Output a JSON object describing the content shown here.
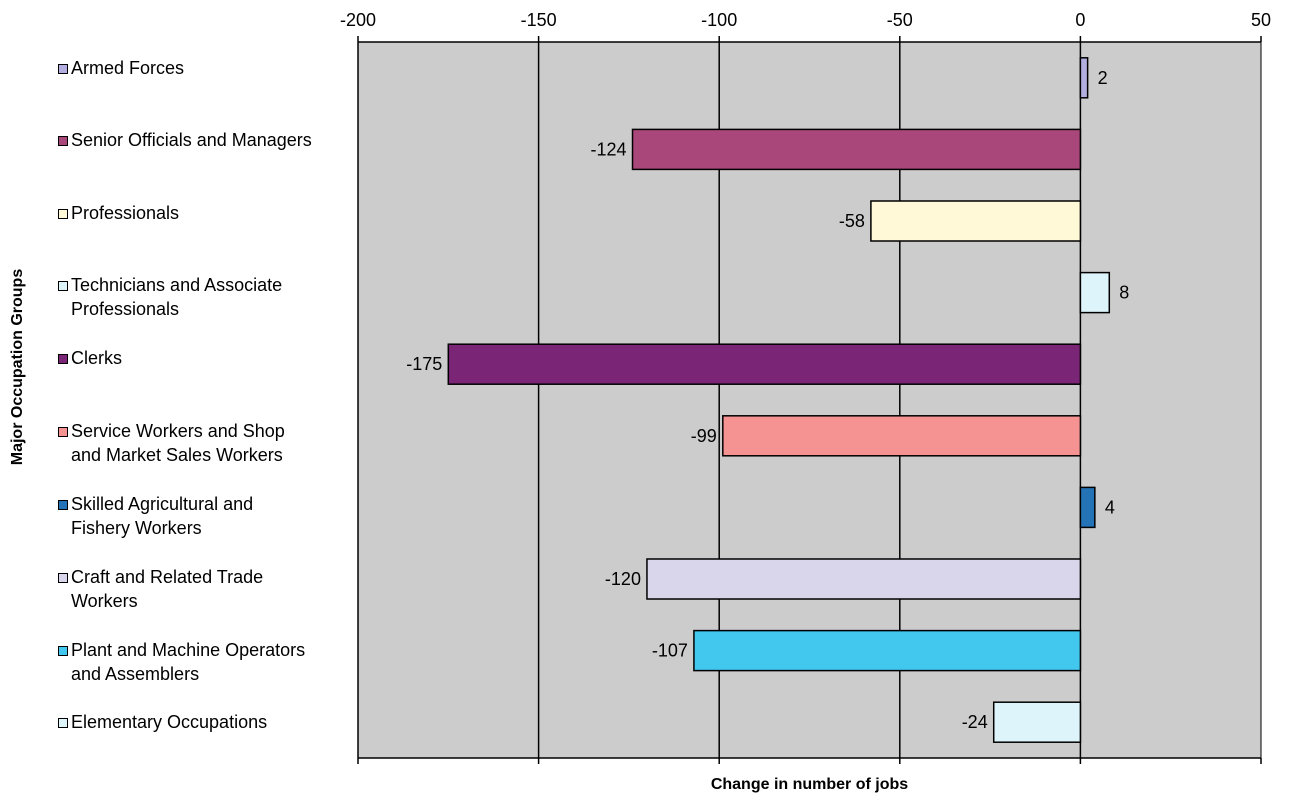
{
  "chart_data": {
    "type": "bar",
    "orientation": "horizontal",
    "xlabel": "Change in number of jobs",
    "ylabel": "Major Occupation Groups",
    "xlim": [
      -200,
      50
    ],
    "xticks": [
      "-200",
      "-150",
      "-100",
      "-50",
      "0",
      "50"
    ],
    "xtick_values": [
      -200,
      -150,
      -100,
      -50,
      0,
      50
    ],
    "plot_background": "#cccccc",
    "grid": true,
    "categories": [
      "Armed Forces",
      "Senior Officials and Managers",
      "Professionals",
      "Technicians and Associate\nProfessionals",
      "Clerks",
      "Service Workers and Shop\nand Market Sales Workers",
      "Skilled  Agricultural and\nFishery Workers",
      "Craft and Related Trade\nWorkers",
      "Plant and Machine Operators\nand Assemblers",
      "Elementary Occupations"
    ],
    "values": [
      2,
      -124,
      -58,
      8,
      -175,
      -99,
      4,
      -120,
      -107,
      -24
    ],
    "data_labels": [
      "2",
      "-124",
      "-58",
      "8",
      "-175",
      "-99",
      "4",
      "-120",
      "-107",
      "-24"
    ],
    "colors": [
      "#b3aee0",
      "#a9477a",
      "#fff9d8",
      "#ddf4fa",
      "#7b2577",
      "#f59393",
      "#2573b7",
      "#d9d6ec",
      "#42c7ef",
      "#ddf4fa"
    ],
    "legend_position": "left"
  }
}
